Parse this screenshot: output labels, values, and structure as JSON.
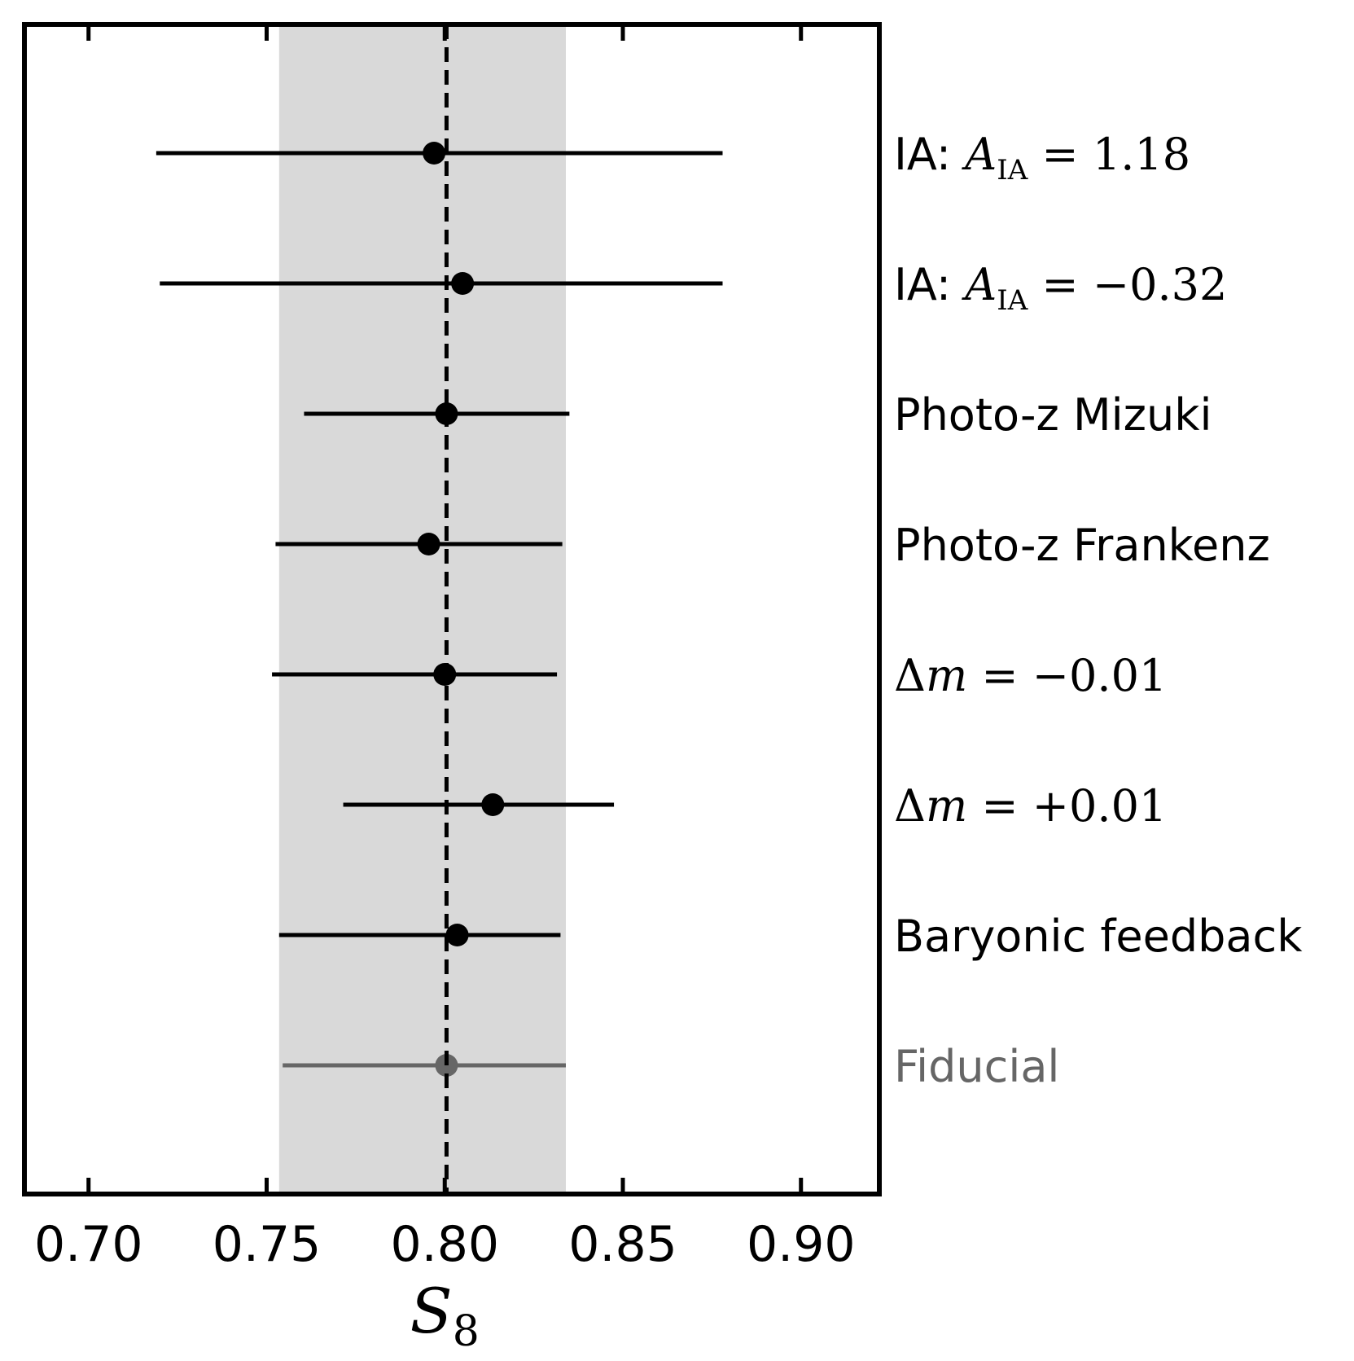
{
  "chart_data": {
    "type": "errorbar",
    "xlabel": "S",
    "xlabel_sub": "8",
    "xlim": [
      0.682,
      0.922
    ],
    "xticks": [
      "0.70",
      "0.75",
      "0.80",
      "0.85",
      "0.90"
    ],
    "xtick_values": [
      0.7,
      0.75,
      0.8,
      0.85,
      0.9
    ],
    "reference_line": 0.8005,
    "reference_band": [
      0.7535,
      0.834
    ],
    "colors": {
      "points": "#000000",
      "fiducial": "#666666",
      "band": "#d9d9d9",
      "frame": "#000000"
    },
    "rows": [
      {
        "label_parts": [
          {
            "t": "IA: ",
            "s": "text"
          },
          {
            "t": "A",
            "s": "math"
          },
          {
            "t": "IA",
            "s": "sub"
          },
          {
            "t": " = 1.18",
            "s": "mathup"
          }
        ],
        "value": 0.797,
        "low": 0.719,
        "high": 0.878,
        "fiducial": false
      },
      {
        "label_parts": [
          {
            "t": "IA: ",
            "s": "text"
          },
          {
            "t": "A",
            "s": "math"
          },
          {
            "t": "IA",
            "s": "sub"
          },
          {
            "t": " = −0.32",
            "s": "mathup"
          }
        ],
        "value": 0.805,
        "low": 0.72,
        "high": 0.878,
        "fiducial": false
      },
      {
        "label_parts": [
          {
            "t": "Photo-z Mizuki",
            "s": "text"
          }
        ],
        "value": 0.8005,
        "low": 0.7605,
        "high": 0.835,
        "fiducial": false
      },
      {
        "label_parts": [
          {
            "t": "Photo-z Frankenz",
            "s": "text"
          }
        ],
        "value": 0.7955,
        "low": 0.7525,
        "high": 0.833,
        "fiducial": false
      },
      {
        "label_parts": [
          {
            "t": "Δ",
            "s": "mathup"
          },
          {
            "t": "m",
            "s": "math"
          },
          {
            "t": " = −0.01",
            "s": "mathup"
          }
        ],
        "value": 0.8,
        "low": 0.7515,
        "high": 0.8315,
        "fiducial": false
      },
      {
        "label_parts": [
          {
            "t": "Δ",
            "s": "mathup"
          },
          {
            "t": "m",
            "s": "math"
          },
          {
            "t": " = +0.01",
            "s": "mathup"
          }
        ],
        "value": 0.8135,
        "low": 0.7715,
        "high": 0.8475,
        "fiducial": false
      },
      {
        "label_parts": [
          {
            "t": "Baryonic feedback",
            "s": "text"
          }
        ],
        "value": 0.8035,
        "low": 0.7535,
        "high": 0.8325,
        "fiducial": false
      },
      {
        "label_parts": [
          {
            "t": "Fiducial",
            "s": "text"
          }
        ],
        "value": 0.8005,
        "low": 0.7545,
        "high": 0.834,
        "fiducial": true
      }
    ]
  }
}
